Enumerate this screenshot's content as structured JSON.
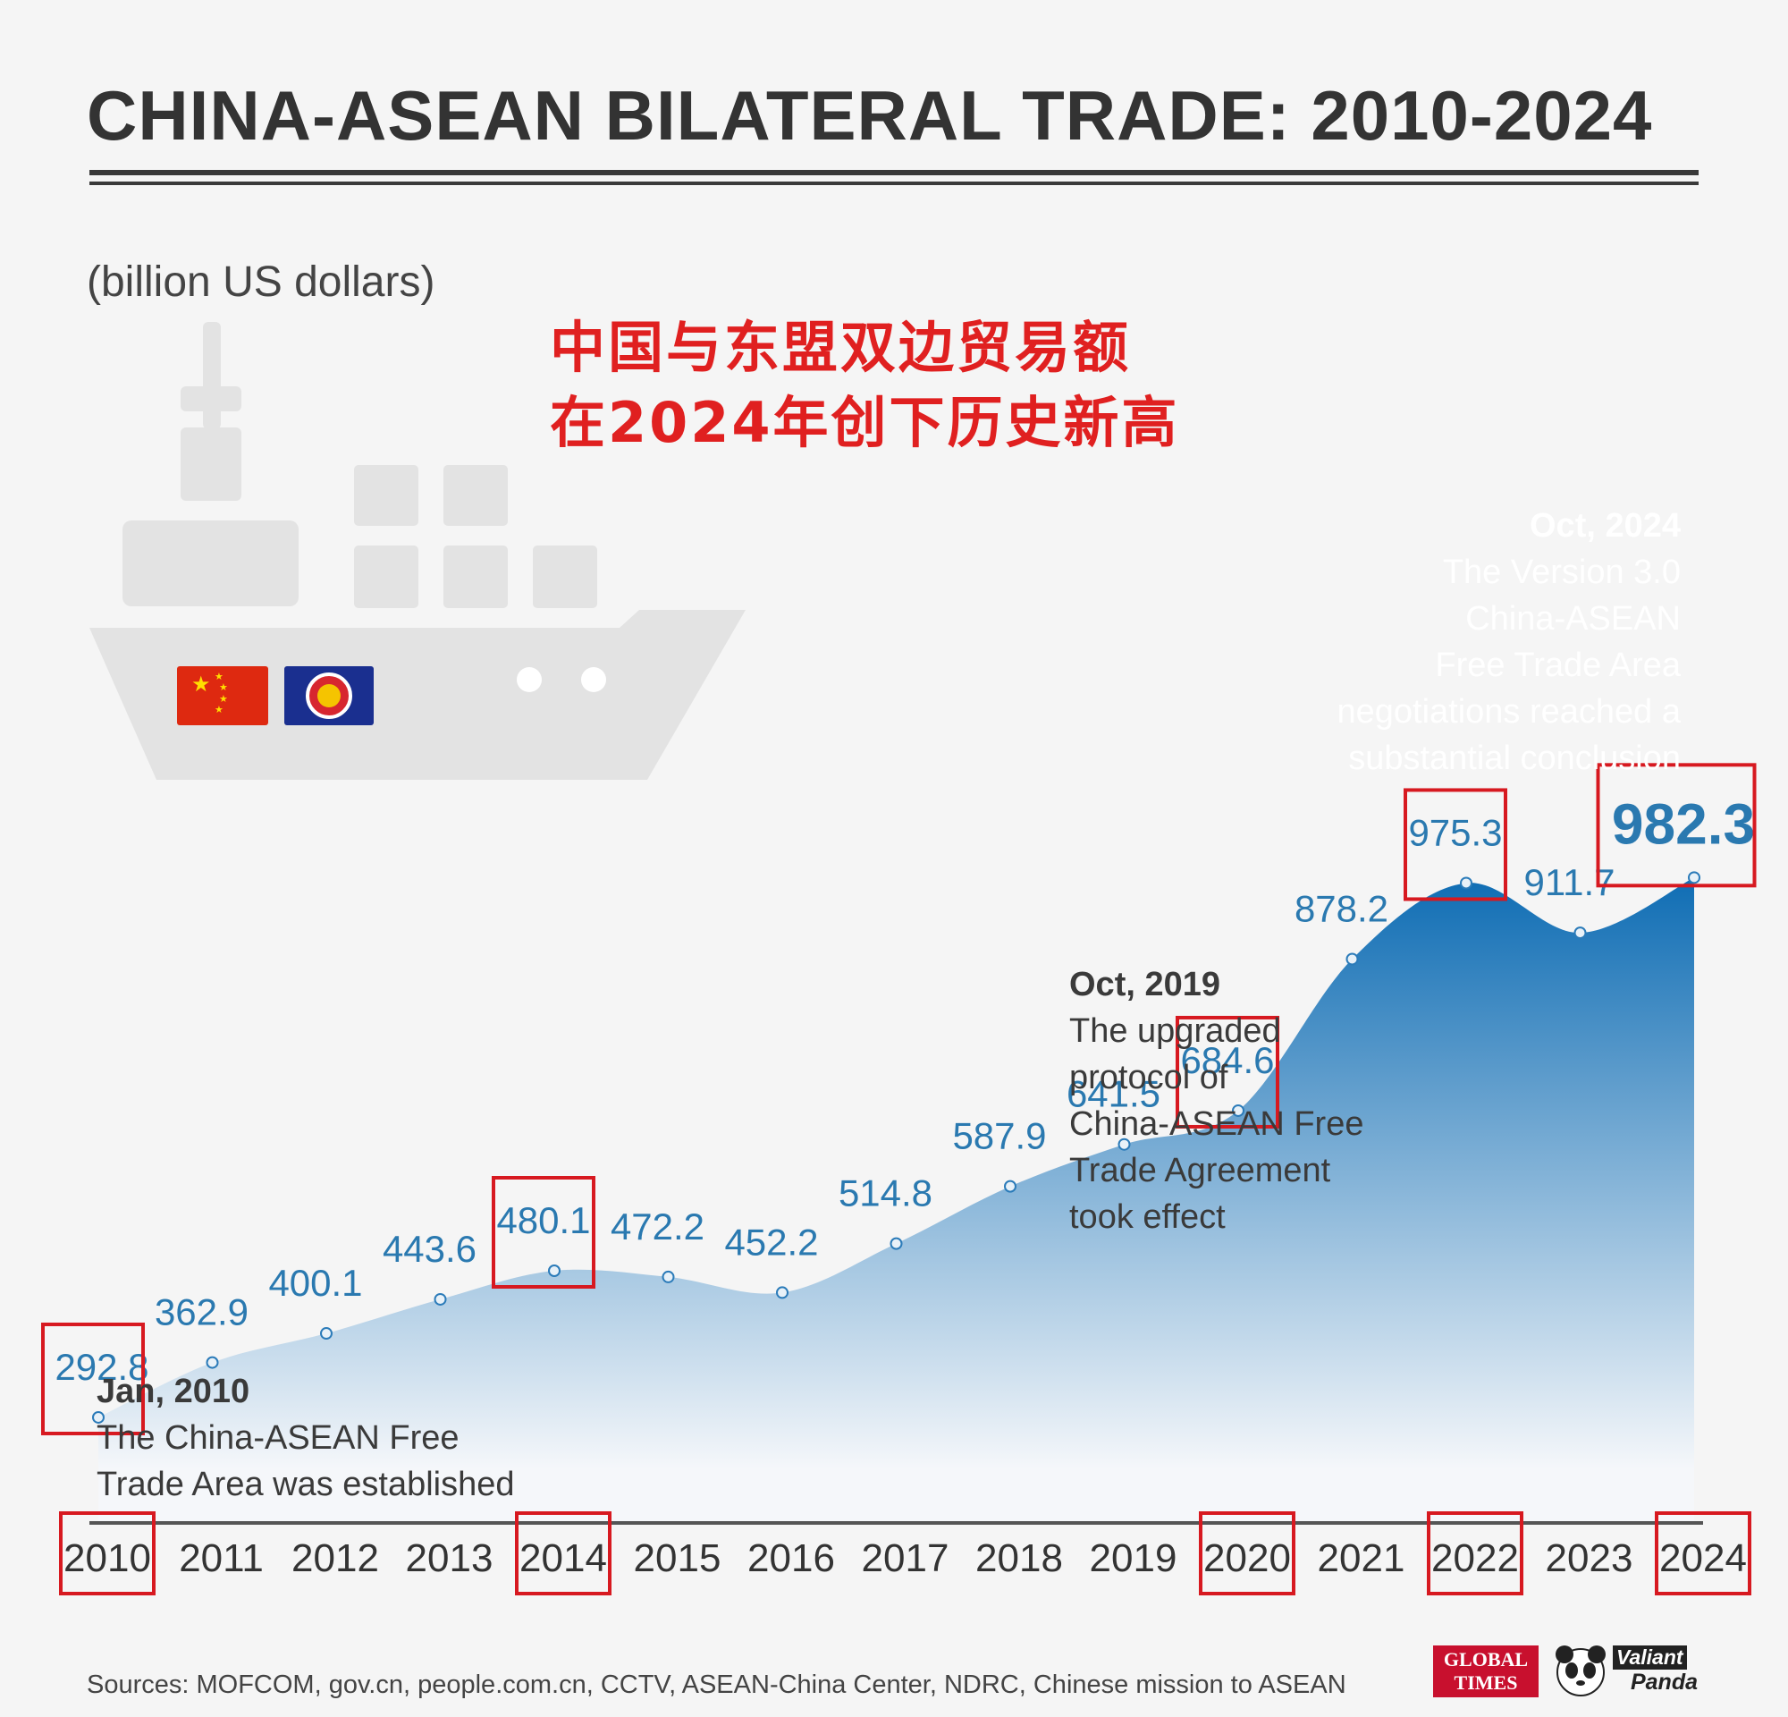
{
  "header": {
    "title": "CHINA-ASEAN BILATERAL TRADE: 2010-2024",
    "unit": "(billion US dollars)",
    "chinese_line1": "中国与东盟双边贸易额",
    "chinese_line2": "在2024年创下历史新高"
  },
  "annotations": {
    "a2010": {
      "date": "Jan, 2010",
      "text": [
        "The China-ASEAN Free",
        "Trade Area was established"
      ]
    },
    "a2019": {
      "date": "Oct, 2019",
      "text": [
        "The upgraded",
        "protocol of",
        "China-ASEAN Free",
        "Trade Agreement",
        "took effect"
      ]
    },
    "a2024": {
      "date": "Oct, 2024",
      "text": [
        "The Version 3.0",
        "China-ASEAN",
        "Free Trade Area",
        "negotiations reached a",
        "substantial conclusion"
      ]
    }
  },
  "footer": {
    "source": "Sources: MOFCOM, gov.cn, people.com.cn, CCTV, ASEAN-China Center, NDRC, Chinese mission to ASEAN",
    "logo1_line1": "GLOBAL",
    "logo1_line2": "TIMES",
    "logo2_line1": "Valiant",
    "logo2_line2": "Panda"
  },
  "colors": {
    "line": "#2b7bb9",
    "label": "#2a79b0",
    "highlight_box": "#d71920",
    "area_top": "#0f6db4",
    "area_bottom": "#f5f7fa"
  },
  "icons": {
    "ship": "ship-icon",
    "china_flag": "china-flag-icon",
    "asean_flag": "asean-flag-icon",
    "panda": "panda-icon"
  },
  "chart_data": {
    "type": "area",
    "x": [
      "2010",
      "2011",
      "2012",
      "2013",
      "2014",
      "2015",
      "2016",
      "2017",
      "2018",
      "2019",
      "2020",
      "2021",
      "2022",
      "2023",
      "2024"
    ],
    "values": [
      292.8,
      362.9,
      400.1,
      443.6,
      480.1,
      472.2,
      452.2,
      514.8,
      587.9,
      641.5,
      684.6,
      878.2,
      975.3,
      911.7,
      982.3
    ],
    "value_labels": [
      "292.8",
      "362.9",
      "400.1",
      "443.6",
      "480.1",
      "472.2",
      "452.2",
      "514.8",
      "587.9",
      "641.5",
      "684.6",
      "878.2",
      "975.3",
      "911.7",
      "982.3"
    ],
    "highlighted_years": [
      "2010",
      "2014",
      "2020",
      "2022",
      "2024"
    ],
    "highlighted_values": [
      "2010",
      "2014",
      "2020",
      "2022",
      "2024"
    ],
    "emphasized_value": "2024",
    "grid": false
  }
}
